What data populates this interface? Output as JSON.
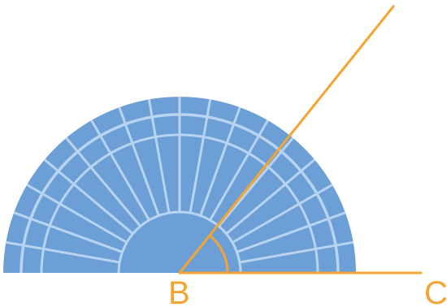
{
  "diagram": {
    "points": [
      {
        "id": "B",
        "label": "B"
      },
      {
        "id": "C",
        "label": "C"
      }
    ],
    "colors": {
      "protractor_fill": "#6b9fd6",
      "protractor_lines": "#b8d4f0",
      "ray": "#f5a431",
      "label": "#f5a431",
      "background": "#ffffff"
    },
    "protractor": {
      "shape": "semicircle",
      "radial_divisions": 18
    }
  }
}
